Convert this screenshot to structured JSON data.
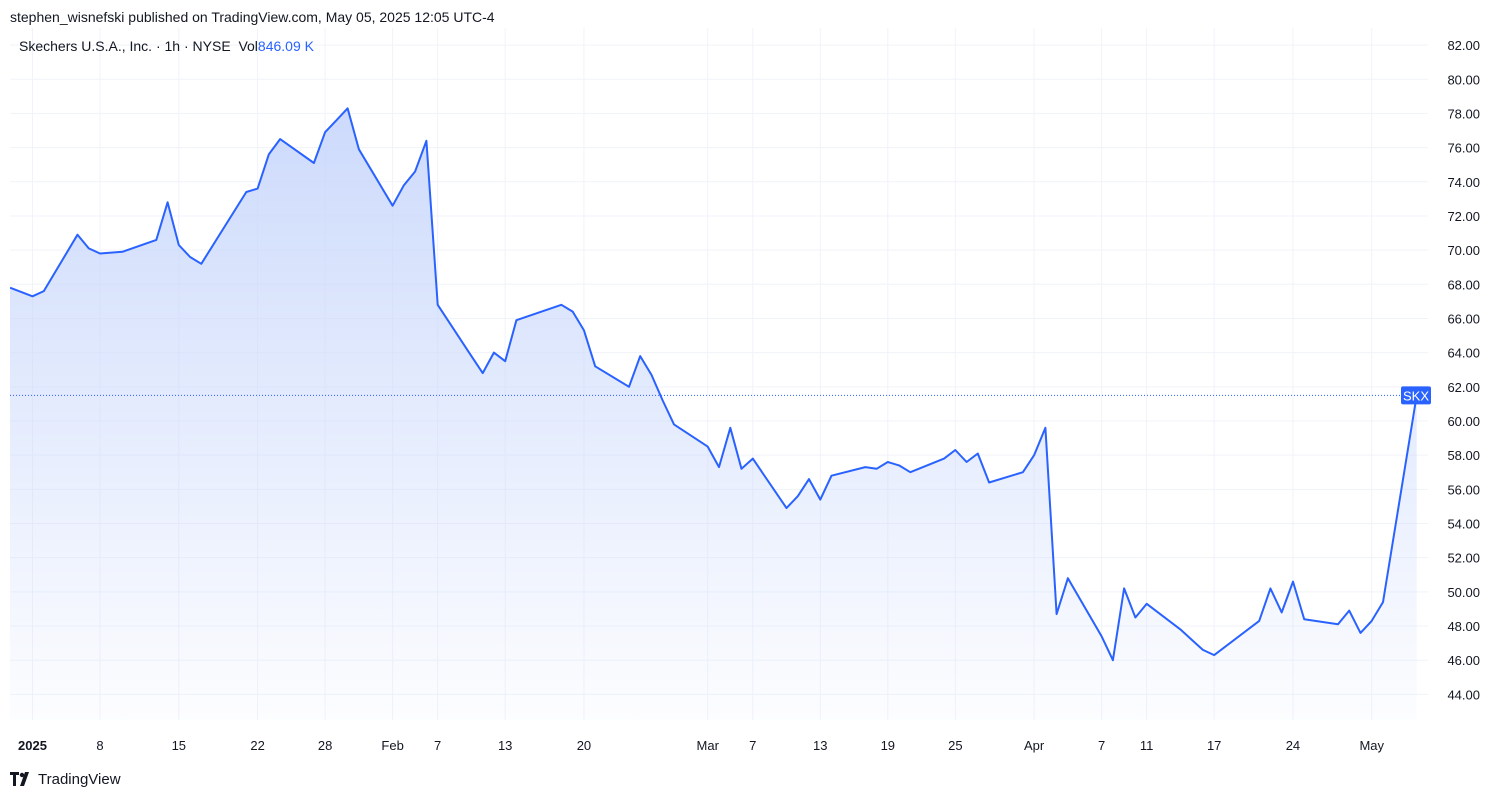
{
  "publish_line": "stephen_wisnefski published on TradingView.com, May 05, 2025 12:05 UTC-4",
  "legend": {
    "symbol_name": "Skechers U.S.A., Inc.",
    "interval": "1h",
    "exchange": "NYSE",
    "separator": "·",
    "vol_label": "Vol",
    "vol_value": "846.09 K"
  },
  "footer": {
    "brand": "TradingView",
    "logo_icon": "tradingview-logo-icon"
  },
  "colors": {
    "line": "#2962ff",
    "area_top": "#c7d6fb",
    "grid": "#f0f3fa",
    "text": "#131722",
    "tag_bg": "#2962ff"
  },
  "chart_data": {
    "type": "area",
    "ticker": "SKX",
    "last_price": 61.5,
    "ylim": [
      42.5,
      83
    ],
    "y_ticks": [
      44,
      46,
      48,
      50,
      52,
      54,
      56,
      58,
      60,
      62,
      64,
      66,
      68,
      70,
      72,
      74,
      76,
      78,
      80,
      82
    ],
    "y_tick_labels": [
      "44.00",
      "46.00",
      "48.00",
      "50.00",
      "52.00",
      "54.00",
      "56.00",
      "58.00",
      "60.00",
      "62.00",
      "64.00",
      "66.00",
      "68.00",
      "70.00",
      "72.00",
      "74.00",
      "76.00",
      "78.00",
      "80.00",
      "82.00"
    ],
    "x_range": [
      "2024-12-31",
      "2025-05-06"
    ],
    "x_ticks": [
      {
        "label": "2025",
        "date": "2025-01-02",
        "bold": true
      },
      {
        "label": "8",
        "date": "2025-01-08"
      },
      {
        "label": "15",
        "date": "2025-01-15"
      },
      {
        "label": "22",
        "date": "2025-01-22"
      },
      {
        "label": "28",
        "date": "2025-01-28"
      },
      {
        "label": "Feb",
        "date": "2025-02-03"
      },
      {
        "label": "7",
        "date": "2025-02-07"
      },
      {
        "label": "13",
        "date": "2025-02-13"
      },
      {
        "label": "20",
        "date": "2025-02-20"
      },
      {
        "label": "Mar",
        "date": "2025-03-03"
      },
      {
        "label": "7",
        "date": "2025-03-07"
      },
      {
        "label": "13",
        "date": "2025-03-13"
      },
      {
        "label": "19",
        "date": "2025-03-19"
      },
      {
        "label": "25",
        "date": "2025-03-25"
      },
      {
        "label": "Apr",
        "date": "2025-04-01"
      },
      {
        "label": "7",
        "date": "2025-04-07"
      },
      {
        "label": "11",
        "date": "2025-04-11"
      },
      {
        "label": "17",
        "date": "2025-04-17"
      },
      {
        "label": "24",
        "date": "2025-04-24"
      },
      {
        "label": "May",
        "date": "2025-05-01"
      }
    ],
    "series": [
      {
        "x": [
          "2024-12-31",
          "2025-01-02",
          "2025-01-03",
          "2025-01-06",
          "2025-01-07",
          "2025-01-08",
          "2025-01-10",
          "2025-01-13",
          "2025-01-14",
          "2025-01-15",
          "2025-01-16",
          "2025-01-17",
          "2025-01-21",
          "2025-01-22",
          "2025-01-23",
          "2025-01-24",
          "2025-01-27",
          "2025-01-28",
          "2025-01-29",
          "2025-01-30",
          "2025-01-31",
          "2025-02-03",
          "2025-02-04",
          "2025-02-05",
          "2025-02-06",
          "2025-02-07",
          "2025-02-10",
          "2025-02-11",
          "2025-02-12",
          "2025-02-13",
          "2025-02-14",
          "2025-02-18",
          "2025-02-19",
          "2025-02-20",
          "2025-02-21",
          "2025-02-24",
          "2025-02-25",
          "2025-02-26",
          "2025-02-27",
          "2025-02-28",
          "2025-03-03",
          "2025-03-04",
          "2025-03-05",
          "2025-03-06",
          "2025-03-07",
          "2025-03-10",
          "2025-03-11",
          "2025-03-12",
          "2025-03-13",
          "2025-03-14",
          "2025-03-17",
          "2025-03-18",
          "2025-03-19",
          "2025-03-20",
          "2025-03-21",
          "2025-03-24",
          "2025-03-25",
          "2025-03-26",
          "2025-03-27",
          "2025-03-28",
          "2025-03-31",
          "2025-04-01",
          "2025-04-02",
          "2025-04-03",
          "2025-04-04",
          "2025-04-07",
          "2025-04-08",
          "2025-04-09",
          "2025-04-10",
          "2025-04-11",
          "2025-04-14",
          "2025-04-15",
          "2025-04-16",
          "2025-04-17",
          "2025-04-21",
          "2025-04-22",
          "2025-04-23",
          "2025-04-24",
          "2025-04-25",
          "2025-04-28",
          "2025-04-29",
          "2025-04-30",
          "2025-05-01",
          "2025-05-02",
          "2025-05-05"
        ],
        "values": [
          67.8,
          67.3,
          67.6,
          70.9,
          70.1,
          69.8,
          69.9,
          70.6,
          72.8,
          70.3,
          69.6,
          69.2,
          73.4,
          73.6,
          75.6,
          76.5,
          75.1,
          76.9,
          77.6,
          78.3,
          75.9,
          72.6,
          73.8,
          74.6,
          76.4,
          66.8,
          63.8,
          62.8,
          64.0,
          63.5,
          65.9,
          66.8,
          66.4,
          65.3,
          63.2,
          62.0,
          63.8,
          62.7,
          61.2,
          59.8,
          58.5,
          57.3,
          59.6,
          57.2,
          57.8,
          54.9,
          55.6,
          56.6,
          55.4,
          56.8,
          57.3,
          57.2,
          57.6,
          57.4,
          57.0,
          57.8,
          58.3,
          57.6,
          58.1,
          56.4,
          57.0,
          58.0,
          59.6,
          48.7,
          50.8,
          47.4,
          46.0,
          50.2,
          48.5,
          49.3,
          47.8,
          47.2,
          46.6,
          46.3,
          48.3,
          50.2,
          48.8,
          50.6,
          48.4,
          48.1,
          48.9,
          47.6,
          48.3,
          49.4,
          61.5
        ]
      }
    ]
  }
}
